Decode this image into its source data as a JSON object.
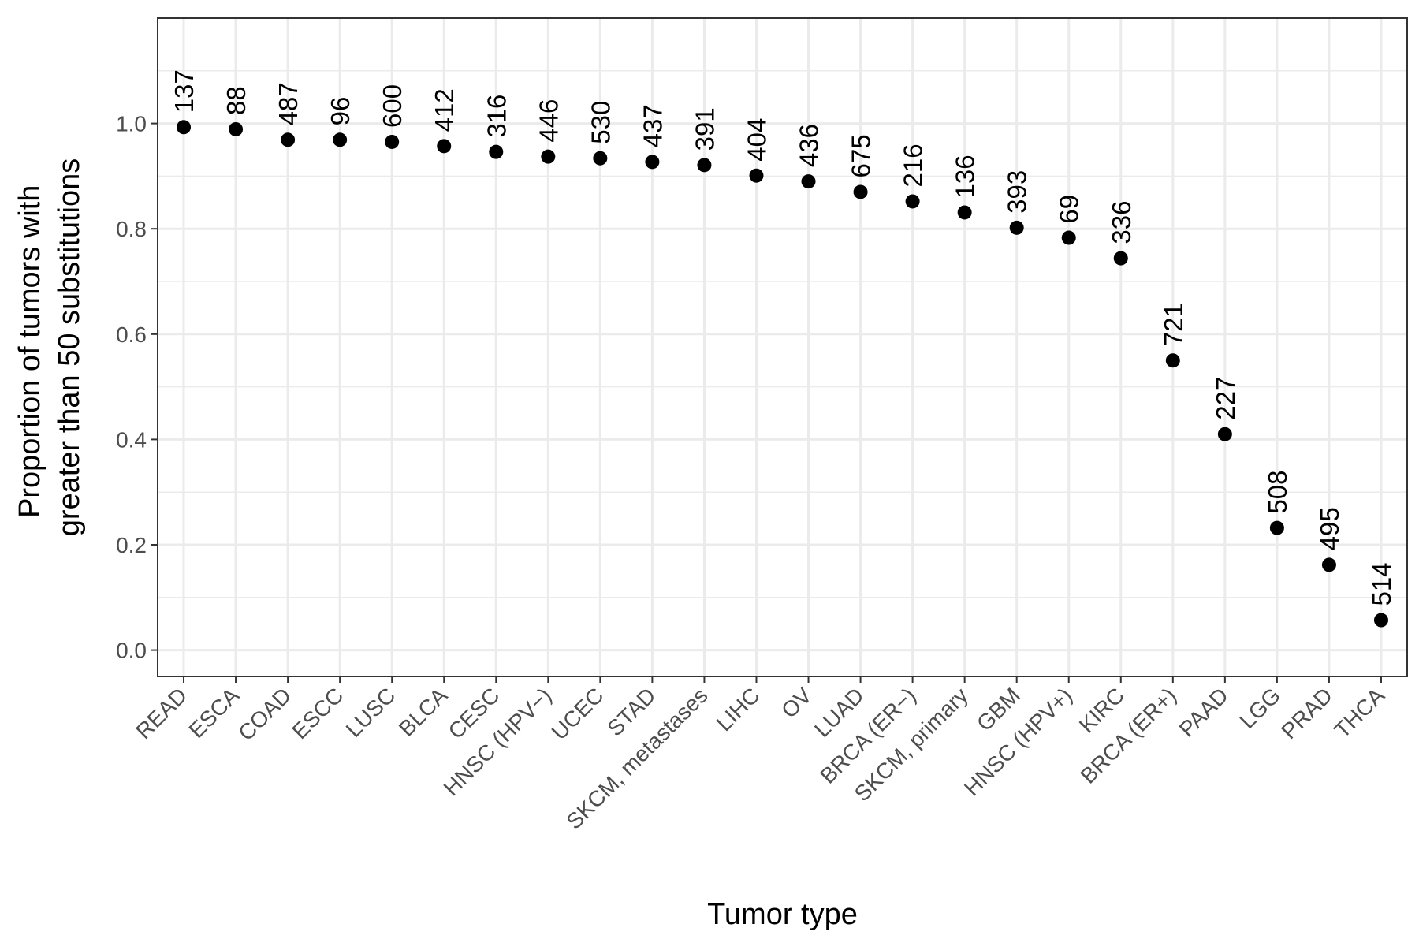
{
  "chart_data": {
    "type": "scatter",
    "xlabel": "Tumor type",
    "ylabel_lines": [
      "Proportion of tumors with",
      "greater than 50 substitutions"
    ],
    "ylim": [
      -0.05,
      1.2
    ],
    "yticks": [
      "0.0",
      "0.2",
      "0.4",
      "0.6",
      "0.8",
      "1.0"
    ],
    "ytick_values": [
      0.0,
      0.2,
      0.4,
      0.6,
      0.8,
      1.0
    ],
    "grid": true,
    "categories": [
      "READ",
      "ESCA",
      "COAD",
      "ESCC",
      "LUSC",
      "BLCA",
      "CESC",
      "HNSC (HPV−)",
      "UCEC",
      "STAD",
      "SKCM, metastases",
      "LIHC",
      "OV",
      "LUAD",
      "BRCA (ER−)",
      "SKCM, primary",
      "GBM",
      "HNSC (HPV+)",
      "KIRC",
      "BRCA (ER+)",
      "PAAD",
      "LGG",
      "PRAD",
      "THCA"
    ],
    "values": [
      0.993,
      0.989,
      0.969,
      0.969,
      0.965,
      0.957,
      0.946,
      0.937,
      0.934,
      0.927,
      0.921,
      0.901,
      0.89,
      0.87,
      0.852,
      0.831,
      0.802,
      0.783,
      0.744,
      0.55,
      0.41,
      0.232,
      0.162,
      0.057
    ],
    "labels": [
      "137",
      "88",
      "487",
      "96",
      "600",
      "412",
      "316",
      "446",
      "530",
      "437",
      "391",
      "404",
      "436",
      "675",
      "216",
      "136",
      "393",
      "69",
      "336",
      "721",
      "227",
      "508",
      "495",
      "514"
    ],
    "point_color": "#000000",
    "grid_color": "#ebebeb",
    "border_color": "#333333"
  }
}
